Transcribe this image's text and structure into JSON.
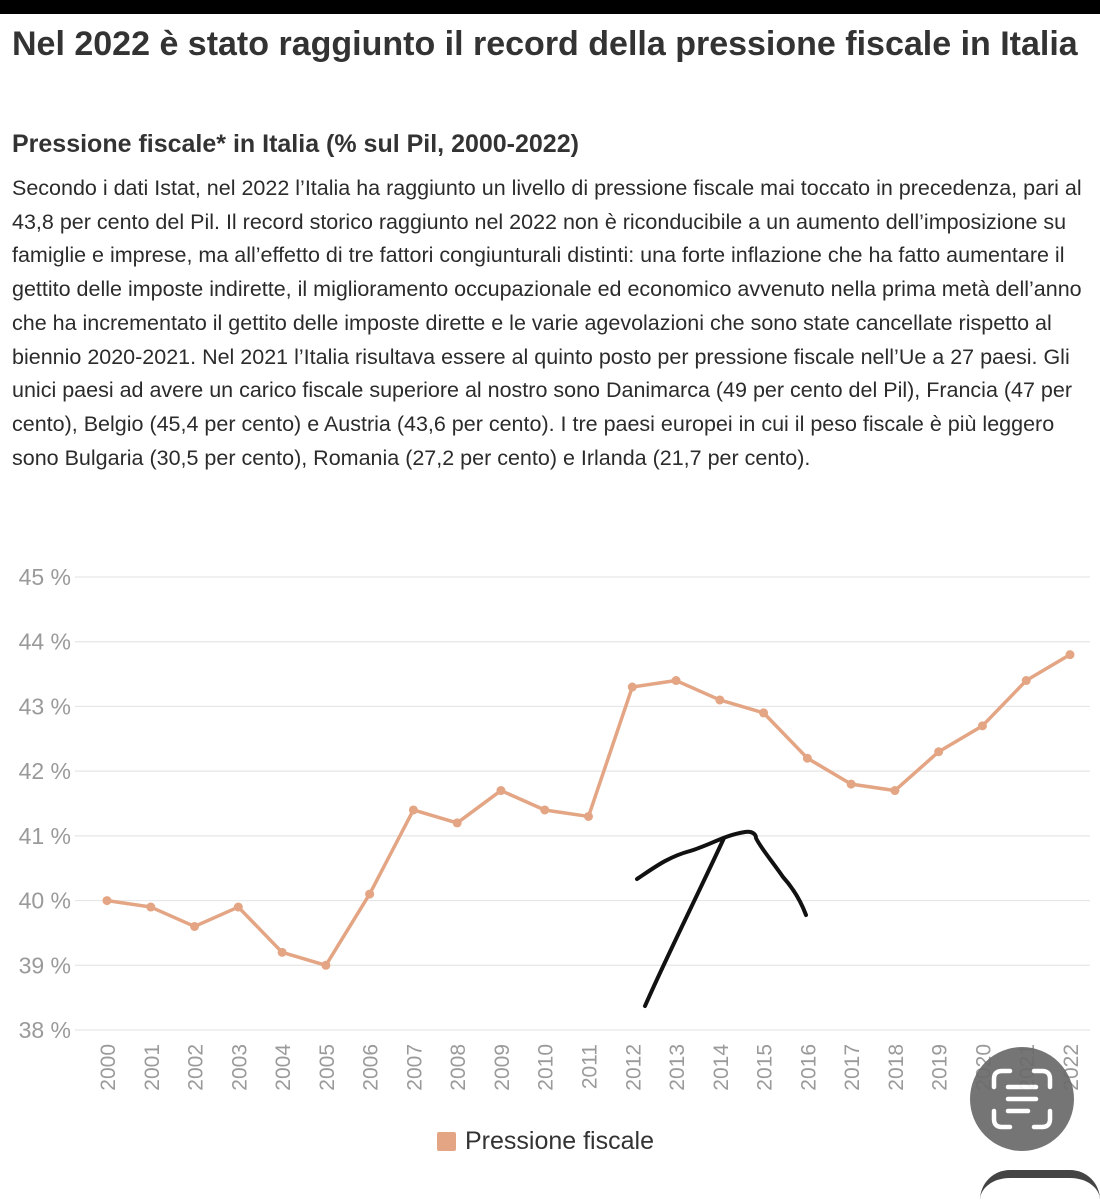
{
  "header": {
    "title": "Nel 2022 è stato raggiunto il record della pressione fiscale in Italia",
    "subtitle": "Pressione fiscale* in Italia (% sul Pil, 2000-2022)",
    "description": "Secondo i dati Istat, nel 2022 l’Italia ha raggiunto un livello di pressione fiscale mai toccato in precedenza, pari al 43,8 per cento del Pil. Il record storico raggiunto nel 2022 non è riconducibile a un aumento dell’imposizione su famiglie e imprese, ma all’effetto di tre fattori congiunturali distinti: una forte inflazione che ha fatto aumentare il gettito delle imposte indirette, il miglioramento occupazionale ed economico avvenuto nella prima metà dell’anno che ha incrementato il gettito delle imposte dirette e le varie agevolazioni che sono state cancellate rispetto al biennio 2020-2021. Nel 2021 l’Italia risultava essere al quinto posto per pressione fiscale nell’Ue a 27 paesi. Gli unici paesi ad avere un carico fiscale superiore al nostro sono Danimarca (49 per cento del Pil), Francia (47 per cento), Belgio (45,4 per cento) e Austria (43,6 per cento). I tre paesi europei in cui il peso fiscale è più leggero sono Bulgaria (30,5 per cento), Romania (27,2 per cento) e Irlanda (21,7 per cento)."
  },
  "colors": {
    "series": "#e3a583",
    "grid": "#e6e6e6",
    "axis_text": "#9a9a9a",
    "annotation": "#111111"
  },
  "icons": {
    "scan": "scan-text-icon"
  },
  "chart_data": {
    "type": "line",
    "x": [
      "2000",
      "2001",
      "2002",
      "2003",
      "2004",
      "2005",
      "2006",
      "2007",
      "2008",
      "2009",
      "2010",
      "2011",
      "2012",
      "2013",
      "2014",
      "2015",
      "2016",
      "2017",
      "2018",
      "2019",
      "2020",
      "2021",
      "2022"
    ],
    "series": [
      {
        "name": "Pressione fiscale",
        "values": [
          40.0,
          39.9,
          39.6,
          39.9,
          39.2,
          39.0,
          40.1,
          41.4,
          41.2,
          41.7,
          41.4,
          41.3,
          43.3,
          43.4,
          43.1,
          42.9,
          42.2,
          41.8,
          41.7,
          42.3,
          42.7,
          43.4,
          43.8
        ]
      }
    ],
    "ylim": [
      38,
      45
    ],
    "yticks": [
      "38 %",
      "39 %",
      "40 %",
      "41 %",
      "42 %",
      "43 %",
      "44 %",
      "45 %"
    ],
    "grid": true,
    "legend": "bottom-center",
    "legend_label": "Pressione fiscale"
  }
}
